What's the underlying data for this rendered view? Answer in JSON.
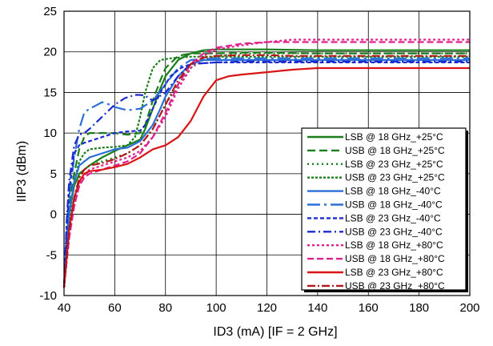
{
  "chart_data": {
    "type": "line",
    "title": "",
    "xlabel": "ID3 (mA) [IF = 2 GHz]",
    "ylabel": "IIP3 (dBm)",
    "xlim": [
      40,
      200
    ],
    "ylim": [
      -10,
      25
    ],
    "x_ticks": [
      40,
      60,
      80,
      100,
      120,
      140,
      160,
      180,
      200
    ],
    "y_ticks": [
      -10,
      -5,
      0,
      5,
      10,
      15,
      20,
      25
    ],
    "grid": true,
    "legend_position": "lower-right",
    "series": [
      {
        "name": "LSB @ 18 GHz_+25°C",
        "color": "#1a7f1a",
        "dash": "solid",
        "x": [
          40,
          41,
          42,
          44,
          46,
          48,
          50,
          55,
          60,
          65,
          70,
          72,
          75,
          78,
          80,
          85,
          90,
          95,
          100,
          110,
          120,
          140,
          160,
          180,
          200
        ],
        "y": [
          -9,
          -4,
          0,
          3.5,
          5,
          5.5,
          6,
          7,
          7.8,
          8.5,
          9.2,
          10.5,
          13,
          15.5,
          17,
          19,
          19.8,
          20.2,
          20.3,
          20.3,
          20.3,
          20.2,
          20.2,
          20.2,
          20.2
        ]
      },
      {
        "name": "USB @ 18 GHz_+25°C",
        "color": "#1a7f1a",
        "dash": "10,5",
        "x": [
          40,
          41,
          42,
          44,
          46,
          48,
          50,
          55,
          60,
          65,
          70,
          72,
          75,
          78,
          80,
          85,
          90,
          95,
          100,
          110,
          120,
          140,
          160,
          180,
          200
        ],
        "y": [
          -9,
          -4,
          1,
          5,
          8,
          9.5,
          10,
          10,
          10,
          9.8,
          10,
          11,
          14,
          16.5,
          18,
          19.5,
          19.8,
          19.8,
          19.8,
          19.9,
          19.9,
          19.8,
          19.8,
          19.8,
          19.8
        ]
      },
      {
        "name": "LSB @ 23 GHz_+25°C",
        "color": "#1a7f1a",
        "dash": "2,4",
        "x": [
          40,
          42,
          44,
          46,
          48,
          50,
          55,
          60,
          65,
          70,
          75,
          80,
          85,
          90,
          95,
          100,
          110,
          120,
          140,
          160,
          180,
          200
        ],
        "y": [
          -9,
          -2,
          2,
          4.5,
          5.5,
          6,
          6.5,
          7,
          7.5,
          8.5,
          10.5,
          13.5,
          16,
          18,
          19,
          19.5,
          19.8,
          19.8,
          19.8,
          19.8,
          19.8,
          19.8
        ]
      },
      {
        "name": "USB @ 23 GHz_+25°C",
        "color": "#1a7f1a",
        "dash": "3,2",
        "x": [
          40,
          42,
          44,
          46,
          48,
          50,
          55,
          60,
          65,
          68,
          70,
          72,
          75,
          78,
          82,
          86,
          90,
          95,
          100,
          110,
          120,
          140,
          160,
          180,
          200
        ],
        "y": [
          -9,
          -1,
          4,
          6.5,
          7.5,
          8,
          8.2,
          8.3,
          8.5,
          9.5,
          12,
          15,
          18,
          19,
          19.2,
          19.3,
          19.4,
          19.4,
          19.4,
          19.4,
          19.4,
          19.4,
          19.4,
          19.4,
          19.4
        ]
      },
      {
        "name": "LSB @ 18 GHz_-40°C",
        "color": "#2a6fd6",
        "dash": "solid",
        "x": [
          40,
          41,
          42,
          44,
          46,
          48,
          50,
          55,
          60,
          65,
          70,
          75,
          78,
          80,
          82,
          85,
          90,
          95,
          100,
          110,
          120,
          140,
          160,
          180,
          200
        ],
        "y": [
          -9,
          -4,
          0,
          4,
          6,
          6.5,
          7,
          7.5,
          8,
          8.2,
          9,
          11,
          13,
          14.5,
          15.5,
          17,
          18.5,
          19,
          19,
          19,
          19,
          19,
          19,
          19,
          19
        ]
      },
      {
        "name": "USB @ 18 GHz_-40°C",
        "color": "#2a6fd6",
        "dash": "16,5,3,5",
        "x": [
          40,
          41,
          42,
          44,
          46,
          48,
          50,
          52,
          55,
          58,
          60,
          65,
          70,
          75,
          80,
          85,
          90,
          100,
          110,
          120,
          140,
          160,
          180,
          200
        ],
        "y": [
          -9,
          -3,
          2,
          7,
          10.5,
          12.5,
          13,
          13.3,
          13.8,
          13.5,
          13.2,
          12.8,
          13,
          14,
          16,
          18,
          19,
          19.2,
          19.2,
          19.2,
          19.2,
          19.2,
          19.2,
          19.2
        ]
      },
      {
        "name": "LSB @ 23 GHz_-40°C",
        "color": "#1c2bd0",
        "dash": "5,3",
        "x": [
          40,
          41,
          42,
          44,
          46,
          48,
          50,
          55,
          60,
          65,
          70,
          72,
          75,
          78,
          82,
          86,
          90,
          100,
          110,
          120,
          140,
          160,
          180,
          200
        ],
        "y": [
          -9,
          -2,
          3,
          7.5,
          8.5,
          8.8,
          9,
          9.5,
          10,
          10.2,
          10.3,
          11,
          13,
          15,
          17,
          18,
          18.5,
          18.7,
          18.7,
          18.7,
          18.7,
          18.7,
          18.7,
          18.7
        ]
      },
      {
        "name": "USB @ 23 GHz_-40°C",
        "color": "#1c2bd0",
        "dash": "10,4,2,4",
        "x": [
          40,
          41,
          42,
          44,
          46,
          48,
          50,
          55,
          60,
          64,
          68,
          70,
          72,
          75,
          80,
          85,
          90,
          100,
          110,
          120,
          140,
          160,
          180,
          200
        ],
        "y": [
          -9,
          -1,
          4,
          8.5,
          9.8,
          10,
          10.5,
          12,
          13.5,
          14.3,
          14.7,
          14.7,
          14.6,
          14,
          15,
          17,
          18.5,
          18.7,
          18.8,
          18.8,
          18.8,
          18.8,
          18.8,
          18.8
        ]
      },
      {
        "name": "LSB @ 18 GHz_+80°C",
        "color": "#e0208a",
        "dash": "3,3",
        "x": [
          40,
          42,
          44,
          46,
          48,
          50,
          55,
          60,
          65,
          70,
          75,
          80,
          85,
          90,
          95,
          100,
          110,
          120,
          130,
          140,
          160,
          180,
          200
        ],
        "y": [
          -9,
          -3,
          1,
          3.5,
          4.8,
          5.5,
          6,
          6.5,
          7,
          7.8,
          9.5,
          12,
          15.5,
          18,
          19.5,
          20.3,
          20.8,
          21.2,
          21.5,
          21.5,
          21.5,
          21.5,
          21.5
        ]
      },
      {
        "name": "USB @ 18 GHz_+80°C",
        "color": "#e0208a",
        "dash": "8,4",
        "x": [
          40,
          42,
          44,
          46,
          48,
          50,
          55,
          60,
          65,
          70,
          75,
          80,
          85,
          90,
          95,
          100,
          110,
          120,
          130,
          140,
          160,
          180,
          200
        ],
        "y": [
          -9,
          -3,
          1,
          3.5,
          4.5,
          5,
          5.5,
          6,
          6.5,
          7.5,
          9.5,
          12.5,
          16,
          18.5,
          19.8,
          20.5,
          21,
          21.2,
          21.2,
          21.2,
          21.2,
          21.2,
          21.2
        ]
      },
      {
        "name": "LSB @ 23 GHz_+80°C",
        "color": "#d81414",
        "dash": "solid",
        "x": [
          40,
          42,
          44,
          46,
          48,
          50,
          55,
          60,
          65,
          70,
          75,
          80,
          85,
          90,
          95,
          100,
          105,
          110,
          120,
          130,
          140,
          160,
          180,
          200
        ],
        "y": [
          -9,
          -2,
          2,
          4,
          5,
          5.3,
          5.5,
          5.8,
          6.2,
          7,
          8,
          8.5,
          9.5,
          11.5,
          14.5,
          16.5,
          17,
          17.2,
          17.5,
          17.8,
          18,
          18,
          18,
          18
        ]
      },
      {
        "name": "USB @ 23 GHz_+80°C",
        "color": "#b01818",
        "dash": "10,3,2,3",
        "x": [
          40,
          42,
          44,
          46,
          48,
          50,
          55,
          60,
          65,
          70,
          75,
          80,
          85,
          90,
          95,
          100,
          110,
          120,
          130,
          140,
          160,
          180,
          200
        ],
        "y": [
          -9,
          -2,
          2,
          4.5,
          5.5,
          6,
          6.3,
          6.8,
          7.5,
          8.5,
          10.5,
          13.5,
          16.5,
          18.5,
          19.3,
          19.5,
          19.6,
          19.6,
          19.5,
          19.5,
          19.5,
          19.5,
          19.5
        ]
      }
    ]
  }
}
